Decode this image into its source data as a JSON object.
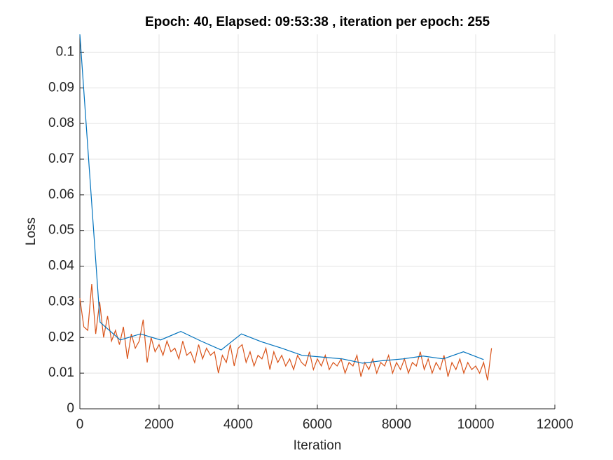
{
  "chart_data": {
    "type": "line",
    "title": "Epoch: 40, Elapsed: 09:53:38  , iteration per epoch: 255",
    "x_label": "Iteration",
    "y_label": "Loss",
    "xlim": [
      0,
      12000
    ],
    "xticks": [
      0,
      2000,
      4000,
      6000,
      8000,
      10000,
      12000
    ],
    "ylim": [
      0,
      0.105
    ],
    "yticks": [
      0,
      0.01,
      0.02,
      0.03,
      0.04,
      0.05,
      0.06,
      0.07,
      0.08,
      0.09,
      0.1
    ],
    "grid": true,
    "series": [
      {
        "color": "#D95319",
        "x": [
          0,
          100,
          200,
          300,
          400,
          500,
          600,
          700,
          800,
          900,
          1000,
          1100,
          1200,
          1300,
          1400,
          1500,
          1600,
          1700,
          1800,
          1900,
          2000,
          2100,
          2200,
          2300,
          2400,
          2500,
          2600,
          2700,
          2800,
          2900,
          3000,
          3100,
          3200,
          3300,
          3400,
          3500,
          3600,
          3700,
          3800,
          3900,
          4000,
          4100,
          4200,
          4300,
          4400,
          4500,
          4600,
          4700,
          4800,
          4900,
          5000,
          5100,
          5200,
          5300,
          5400,
          5500,
          5600,
          5700,
          5800,
          5900,
          6000,
          6100,
          6200,
          6300,
          6400,
          6500,
          6600,
          6700,
          6800,
          6900,
          7000,
          7100,
          7200,
          7300,
          7400,
          7500,
          7600,
          7700,
          7800,
          7900,
          8000,
          8100,
          8200,
          8300,
          8400,
          8500,
          8600,
          8700,
          8800,
          8900,
          9000,
          9100,
          9200,
          9300,
          9400,
          9500,
          9600,
          9700,
          9800,
          9900,
          10000,
          10100,
          10200,
          10300,
          10400
        ],
        "values": [
          0.031,
          0.023,
          0.022,
          0.035,
          0.021,
          0.03,
          0.02,
          0.026,
          0.019,
          0.022,
          0.018,
          0.023,
          0.014,
          0.021,
          0.017,
          0.019,
          0.025,
          0.013,
          0.02,
          0.016,
          0.018,
          0.015,
          0.019,
          0.016,
          0.017,
          0.014,
          0.019,
          0.015,
          0.016,
          0.013,
          0.018,
          0.014,
          0.017,
          0.015,
          0.016,
          0.01,
          0.015,
          0.013,
          0.018,
          0.012,
          0.017,
          0.018,
          0.013,
          0.016,
          0.012,
          0.015,
          0.014,
          0.017,
          0.011,
          0.016,
          0.013,
          0.015,
          0.012,
          0.014,
          0.011,
          0.015,
          0.013,
          0.012,
          0.016,
          0.011,
          0.014,
          0.012,
          0.015,
          0.011,
          0.013,
          0.012,
          0.014,
          0.01,
          0.013,
          0.012,
          0.015,
          0.009,
          0.013,
          0.011,
          0.014,
          0.01,
          0.013,
          0.012,
          0.015,
          0.01,
          0.013,
          0.011,
          0.014,
          0.01,
          0.013,
          0.012,
          0.016,
          0.011,
          0.014,
          0.01,
          0.013,
          0.011,
          0.015,
          0.009,
          0.013,
          0.011,
          0.014,
          0.01,
          0.013,
          0.011,
          0.012,
          0.01,
          0.013,
          0.008,
          0.017
        ]
      },
      {
        "color": "#0072BD",
        "x": [
          0,
          510,
          1020,
          1530,
          2040,
          2550,
          3060,
          3570,
          4080,
          4590,
          5100,
          5610,
          6120,
          6630,
          7140,
          7650,
          8160,
          8670,
          9180,
          9690,
          10200
        ],
        "values": [
          0.105,
          0.0243,
          0.0193,
          0.021,
          0.0193,
          0.0217,
          0.019,
          0.0165,
          0.021,
          0.0188,
          0.017,
          0.015,
          0.0145,
          0.014,
          0.0128,
          0.0135,
          0.014,
          0.0148,
          0.014,
          0.016,
          0.0138
        ]
      }
    ]
  }
}
